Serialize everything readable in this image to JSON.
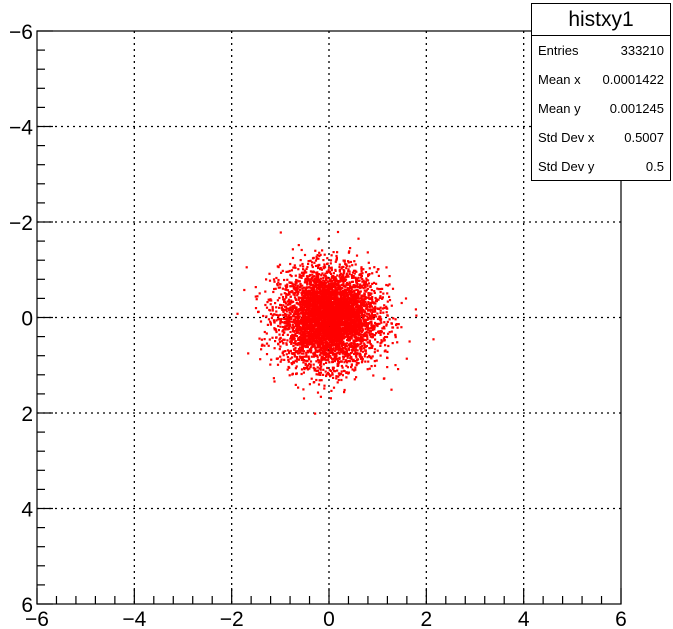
{
  "chart_data": {
    "type": "scatter",
    "title": "",
    "xlabel": "",
    "ylabel": "",
    "xlim": [
      -6,
      6
    ],
    "ylim": [
      -6,
      6
    ],
    "x_ticks": [
      -6,
      -4,
      -2,
      0,
      2,
      4,
      6
    ],
    "y_ticks": [
      -6,
      -4,
      -2,
      0,
      2,
      4,
      6
    ],
    "x_tick_labels": [
      "−6",
      "−4",
      "−2",
      "0",
      "2",
      "4",
      "6"
    ],
    "y_tick_labels": [
      "6",
      "4",
      "2",
      "0",
      "−2",
      "−4",
      "−6"
    ],
    "grid": true,
    "marker_color": "#ff0000",
    "distribution": {
      "entries": 333210,
      "mean_x": 0.0001422,
      "mean_y": 0.001245,
      "std_x": 0.5007,
      "std_y": 0.5
    },
    "stats_box": {
      "title": "histxy1",
      "placement": "top-right",
      "rows": [
        {
          "label": "Entries",
          "value": "333210"
        },
        {
          "label": "Mean x",
          "value": "0.0001422"
        },
        {
          "label": "Mean y",
          "value": "0.001245"
        },
        {
          "label": "Std Dev x",
          "value": "0.5007"
        },
        {
          "label": "Std Dev y",
          "value": "0.5"
        }
      ]
    }
  }
}
